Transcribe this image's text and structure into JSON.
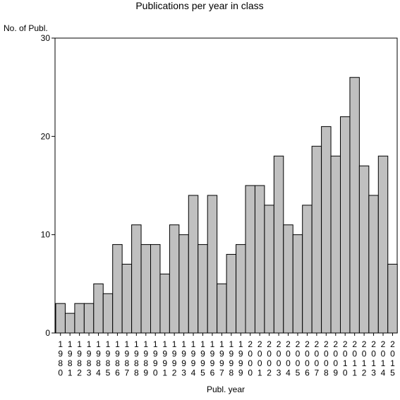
{
  "chart_data": {
    "type": "bar",
    "title": "Publications per year in class",
    "xlabel": "Publ. year",
    "ylabel": "No. of Publ.",
    "ylim": [
      0,
      30
    ],
    "yticks": [
      0,
      10,
      20,
      30
    ],
    "grid": false,
    "legend": "none",
    "categories": [
      "1980",
      "1981",
      "1982",
      "1983",
      "1984",
      "1985",
      "1986",
      "1987",
      "1988",
      "1989",
      "1990",
      "1991",
      "1992",
      "1993",
      "1994",
      "1995",
      "1996",
      "1997",
      "1998",
      "1999",
      "2000",
      "2001",
      "2002",
      "2003",
      "2004",
      "2005",
      "2006",
      "2007",
      "2008",
      "2009",
      "2010",
      "2011",
      "2012",
      "2013",
      "2014",
      "2015"
    ],
    "values": [
      3,
      2,
      3,
      3,
      5,
      4,
      9,
      7,
      11,
      9,
      9,
      6,
      11,
      10,
      14,
      9,
      14,
      5,
      8,
      9,
      15,
      15,
      13,
      18,
      11,
      10,
      13,
      19,
      21,
      18,
      22,
      26,
      17,
      14,
      18,
      7
    ],
    "colors": {
      "bar_fill": "#c0c0c0",
      "bar_stroke": "#000000",
      "axis": "#000000",
      "background": "#ffffff"
    }
  }
}
